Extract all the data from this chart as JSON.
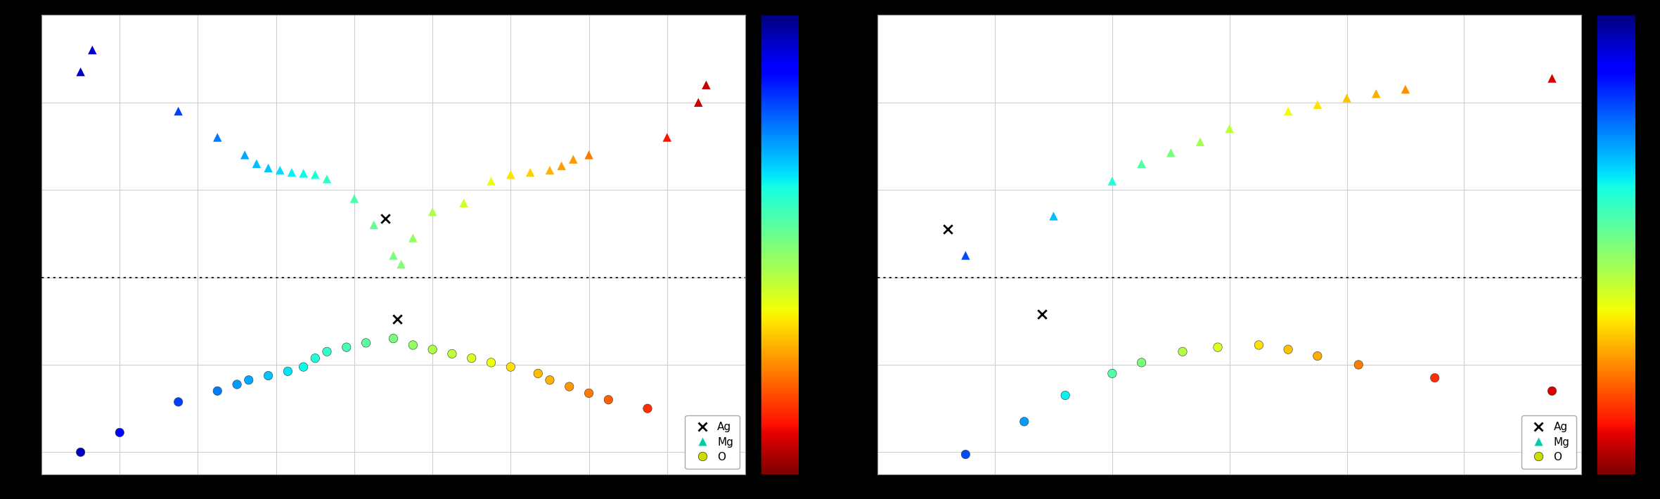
{
  "fig_width": 23.61,
  "fig_height": 7.1,
  "background_color": "#000000",
  "panel_bg": "#ffffff",
  "colormap": "jet_r",
  "vmin": 0.0,
  "vmax": 1.0,
  "plot1": {
    "xlim": [
      0,
      180
    ],
    "ylim": [
      -4.5,
      6.0
    ],
    "dashed_y": 0.0,
    "Ag": {
      "x": [
        88,
        91
      ],
      "y": [
        1.35,
        -0.95
      ]
    },
    "Mg": {
      "x": [
        10,
        13,
        35,
        45,
        52,
        55,
        58,
        61,
        64,
        67,
        70,
        73,
        80,
        85,
        90,
        92,
        95,
        100,
        108,
        115,
        120,
        125,
        130,
        133,
        136,
        140,
        160,
        168,
        170
      ],
      "y": [
        4.7,
        5.2,
        3.8,
        3.2,
        2.8,
        2.6,
        2.5,
        2.45,
        2.4,
        2.38,
        2.35,
        2.25,
        1.8,
        1.2,
        0.5,
        0.3,
        0.9,
        1.5,
        1.7,
        2.2,
        2.35,
        2.4,
        2.45,
        2.55,
        2.7,
        2.8,
        3.2,
        4.0,
        4.4
      ],
      "c": [
        0.94,
        0.93,
        0.81,
        0.75,
        0.71,
        0.69,
        0.68,
        0.66,
        0.64,
        0.63,
        0.61,
        0.59,
        0.56,
        0.53,
        0.5,
        0.49,
        0.47,
        0.44,
        0.4,
        0.36,
        0.33,
        0.31,
        0.28,
        0.26,
        0.25,
        0.22,
        0.11,
        0.07,
        0.06
      ]
    },
    "O": {
      "x": [
        10,
        20,
        35,
        45,
        50,
        53,
        58,
        63,
        67,
        70,
        73,
        78,
        83,
        90,
        95,
        100,
        105,
        110,
        115,
        120,
        127,
        130,
        135,
        140,
        145,
        155,
        168,
        170
      ],
      "y": [
        -4.0,
        -3.55,
        -2.85,
        -2.6,
        -2.45,
        -2.35,
        -2.25,
        -2.15,
        -2.05,
        -1.85,
        -1.7,
        -1.6,
        -1.5,
        -1.4,
        -1.55,
        -1.65,
        -1.75,
        -1.85,
        -1.95,
        -2.05,
        -2.2,
        -2.35,
        -2.5,
        -2.65,
        -2.8,
        -3.0,
        -3.5,
        -3.9
      ],
      "c": [
        0.94,
        0.89,
        0.81,
        0.75,
        0.72,
        0.71,
        0.68,
        0.65,
        0.63,
        0.61,
        0.59,
        0.57,
        0.54,
        0.5,
        0.47,
        0.44,
        0.42,
        0.39,
        0.36,
        0.33,
        0.29,
        0.28,
        0.25,
        0.22,
        0.19,
        0.14,
        0.07,
        0.06
      ]
    }
  },
  "plot2": {
    "xlim": [
      2.0,
      14.0
    ],
    "ylim": [
      -4.5,
      6.0
    ],
    "dashed_y": 0.0,
    "Ag": {
      "x": [
        3.2,
        4.8
      ],
      "y": [
        1.1,
        -0.85
      ]
    },
    "Mg": {
      "x": [
        3.5,
        5.0,
        6.0,
        6.5,
        7.0,
        7.5,
        8.0,
        9.0,
        9.5,
        10.0,
        10.5,
        11.0,
        13.5
      ],
      "y": [
        0.5,
        1.4,
        2.2,
        2.6,
        2.85,
        3.1,
        3.4,
        3.8,
        3.95,
        4.1,
        4.2,
        4.3,
        4.55
      ],
      "c": [
        0.8,
        0.69,
        0.61,
        0.55,
        0.5,
        0.45,
        0.42,
        0.36,
        0.33,
        0.3,
        0.27,
        0.24,
        0.08
      ]
    },
    "O": {
      "x": [
        3.5,
        4.5,
        5.2,
        6.0,
        6.5,
        7.2,
        7.8,
        8.5,
        9.0,
        9.5,
        10.2,
        11.5,
        13.5
      ],
      "y": [
        -4.05,
        -3.3,
        -2.7,
        -2.2,
        -1.95,
        -1.7,
        -1.6,
        -1.55,
        -1.65,
        -1.8,
        -2.0,
        -2.3,
        -2.6
      ],
      "c": [
        0.8,
        0.72,
        0.64,
        0.55,
        0.5,
        0.43,
        0.38,
        0.33,
        0.3,
        0.27,
        0.22,
        0.14,
        0.08
      ]
    }
  }
}
